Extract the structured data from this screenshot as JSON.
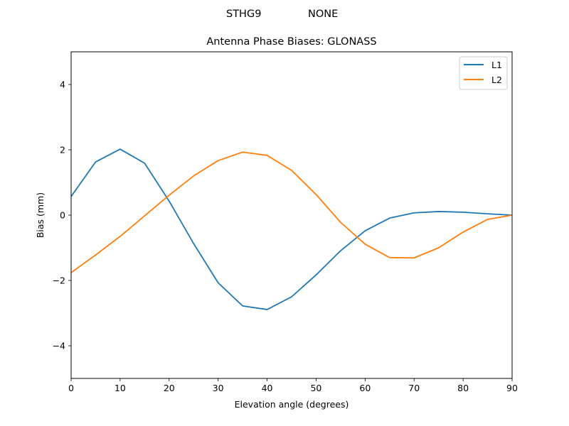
{
  "figure": {
    "suptitle_left": "STHG9",
    "suptitle_right": "NONE"
  },
  "chart_data": {
    "type": "line",
    "title": "Antenna Phase Biases: GLONASS",
    "xlabel": "Elevation angle (degrees)",
    "ylabel": "Bias (mm)",
    "xlim": [
      0,
      90
    ],
    "ylim": [
      -5,
      5
    ],
    "xticks": [
      0,
      10,
      20,
      30,
      40,
      50,
      60,
      70,
      80,
      90
    ],
    "yticks": [
      -4,
      -2,
      0,
      2,
      4
    ],
    "ytick_labels": [
      "−4",
      "−2",
      "0",
      "2",
      "4"
    ],
    "grid": false,
    "legend_position": "upper right",
    "x": [
      0,
      5,
      10,
      15,
      20,
      25,
      30,
      35,
      40,
      45,
      50,
      55,
      60,
      65,
      70,
      75,
      80,
      85,
      90
    ],
    "series": [
      {
        "name": "L1",
        "color": "#1f77b4",
        "values": [
          0.57,
          1.63,
          2.02,
          1.59,
          0.43,
          -0.87,
          -2.07,
          -2.78,
          -2.89,
          -2.5,
          -1.83,
          -1.09,
          -0.48,
          -0.09,
          0.07,
          0.11,
          0.09,
          0.04,
          0.0
        ]
      },
      {
        "name": "L2",
        "color": "#ff7f0e",
        "values": [
          -1.76,
          -1.22,
          -0.65,
          -0.02,
          0.61,
          1.2,
          1.67,
          1.93,
          1.83,
          1.37,
          0.63,
          -0.22,
          -0.89,
          -1.3,
          -1.31,
          -1.0,
          -0.52,
          -0.13,
          0.0
        ]
      }
    ]
  }
}
